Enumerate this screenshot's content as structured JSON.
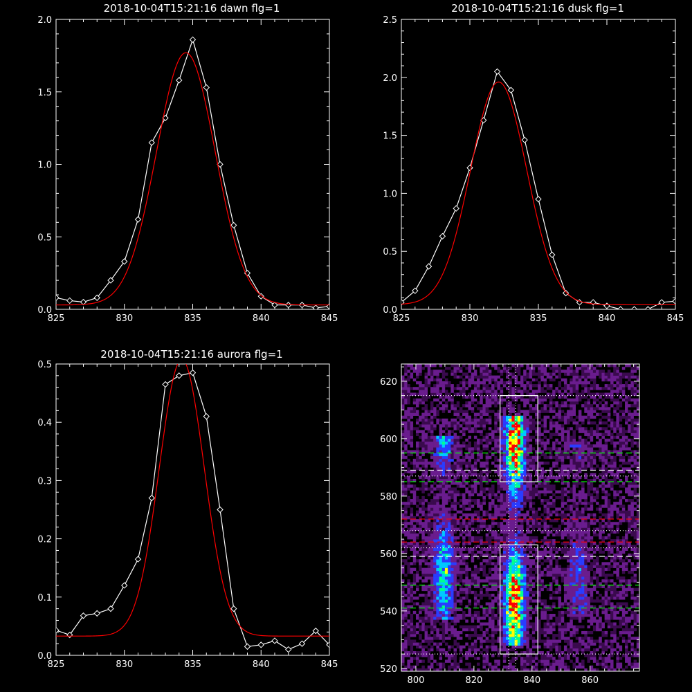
{
  "chart_data": [
    {
      "type": "line",
      "title": "2018-10-04T15:21:16 dawn flg=1",
      "xlim": [
        825,
        845
      ],
      "ylim": [
        0,
        2.0
      ],
      "xticks": [
        "825",
        "830",
        "835",
        "840",
        "845"
      ],
      "yticks": [
        "0.0",
        "0.5",
        "1.0",
        "1.5",
        "2.0"
      ],
      "xtick_values": [
        825,
        830,
        835,
        840,
        845
      ],
      "ytick_values": [
        0,
        0.5,
        1.0,
        1.5,
        2.0
      ],
      "series": [
        {
          "color": "#ffffff",
          "marker": "diamond",
          "x": [
            825,
            826,
            827,
            828,
            829,
            830,
            831,
            832,
            833,
            834,
            835,
            836,
            837,
            838,
            839,
            840,
            841,
            842,
            843,
            844,
            845
          ],
          "y": [
            0.08,
            0.06,
            0.05,
            0.08,
            0.2,
            0.33,
            0.62,
            1.15,
            1.32,
            1.58,
            1.86,
            1.53,
            1.0,
            0.58,
            0.25,
            0.09,
            0.03,
            0.03,
            0.03,
            0.01,
            0.02
          ]
        },
        {
          "color": "#ff0000",
          "marker": "none",
          "gauss": {
            "amp": 1.74,
            "center": 834.5,
            "sigma": 2.15,
            "base": 0.03
          }
        }
      ]
    },
    {
      "type": "line",
      "title": "2018-10-04T15:21:16 dusk flg=1",
      "xlim": [
        825,
        845
      ],
      "ylim": [
        0,
        2.5
      ],
      "xticks": [
        "825",
        "830",
        "835",
        "840",
        "845"
      ],
      "yticks": [
        "0.0",
        "0.5",
        "1.0",
        "1.5",
        "2.0",
        "2.5"
      ],
      "xtick_values": [
        825,
        830,
        835,
        840,
        845
      ],
      "ytick_values": [
        0,
        0.5,
        1.0,
        1.5,
        2.0,
        2.5
      ],
      "series": [
        {
          "color": "#ffffff",
          "marker": "diamond",
          "x": [
            825,
            826,
            827,
            828,
            829,
            830,
            831,
            832,
            833,
            834,
            835,
            836,
            837,
            838,
            839,
            840,
            841,
            842,
            843,
            844,
            845
          ],
          "y": [
            0.06,
            0.16,
            0.37,
            0.63,
            0.87,
            1.22,
            1.63,
            2.05,
            1.89,
            1.46,
            0.95,
            0.47,
            0.14,
            0.06,
            0.06,
            0.03,
            0.0,
            0.0,
            0.0,
            0.06,
            0.07
          ]
        },
        {
          "color": "#ff0000",
          "marker": "none",
          "gauss": {
            "amp": 1.92,
            "center": 832.1,
            "sigma": 2.05,
            "base": 0.04
          }
        }
      ]
    },
    {
      "type": "line",
      "title": "2018-10-04T15:21:16 aurora flg=1",
      "xlim": [
        825,
        845
      ],
      "ylim": [
        0,
        0.5
      ],
      "xticks": [
        "825",
        "830",
        "835",
        "840",
        "845"
      ],
      "yticks": [
        "0.0",
        "0.1",
        "0.2",
        "0.3",
        "0.4",
        "0.5"
      ],
      "xtick_values": [
        825,
        830,
        835,
        840,
        845
      ],
      "ytick_values": [
        0,
        0.1,
        0.2,
        0.3,
        0.4,
        0.5
      ],
      "series": [
        {
          "color": "#ffffff",
          "marker": "diamond",
          "x": [
            825,
            826,
            827,
            828,
            829,
            830,
            831,
            832,
            833,
            834,
            835,
            836,
            837,
            838,
            839,
            840,
            841,
            842,
            843,
            844,
            845
          ],
          "y": [
            0.043,
            0.035,
            0.068,
            0.072,
            0.08,
            0.12,
            0.165,
            0.27,
            0.465,
            0.48,
            0.485,
            0.41,
            0.25,
            0.08,
            0.015,
            0.018,
            0.025,
            0.01,
            0.02,
            0.042,
            0.018
          ]
        },
        {
          "color": "#ff0000",
          "marker": "none",
          "gauss": {
            "amp": 0.475,
            "center": 834.2,
            "sigma": 1.65,
            "base": 0.033
          }
        }
      ]
    },
    {
      "type": "heatmap",
      "xlim": [
        795,
        877
      ],
      "ylim": [
        519,
        626
      ],
      "xticks": [
        "800",
        "820",
        "840",
        "860"
      ],
      "yticks": [
        "520",
        "540",
        "560",
        "580",
        "600",
        "620"
      ],
      "xtick_values": [
        800,
        820,
        840,
        860
      ],
      "ytick_values": [
        520,
        540,
        560,
        580,
        600,
        620
      ],
      "colormap": [
        "#000000",
        "#3a0a4e",
        "#6a1c8e",
        "#2a3cff",
        "#00c8ff",
        "#00ff90",
        "#ffff00",
        "#ff0000"
      ],
      "bands": [
        {
          "x": 809.5,
          "y_from": 537,
          "y_to": 600,
          "strength": 0.55
        },
        {
          "x": 834,
          "y_from": 528,
          "y_to": 607,
          "strength": 1.0
        },
        {
          "x": 856,
          "y_from": 538,
          "y_to": 598,
          "strength": 0.25
        }
      ],
      "boxes": [
        {
          "x0": 829,
          "x1": 842,
          "y0": 585,
          "y1": 615,
          "color": "#ffffff"
        },
        {
          "x0": 829,
          "x1": 842,
          "y0": 525,
          "y1": 563,
          "color": "#ffffff"
        }
      ],
      "vlines": [
        {
          "x": 832,
          "color": "#ffffff",
          "style": "dotted"
        },
        {
          "x": 834.4,
          "color": "#ffffff",
          "style": "dotted"
        }
      ],
      "hlines": [
        {
          "y": 615,
          "color": "#ffffff",
          "style": "dotted"
        },
        {
          "y": 595,
          "color": "#00ff00",
          "style": "dashed"
        },
        {
          "y": 589,
          "color": "#ffffff",
          "style": "dashed"
        },
        {
          "y": 587,
          "color": "#ffffff",
          "style": "dotted"
        },
        {
          "y": 585,
          "color": "#00ff00",
          "style": "dashed"
        },
        {
          "y": 572,
          "color": "#ff0000",
          "style": "dashed"
        },
        {
          "y": 568,
          "color": "#ffffff",
          "style": "dotted"
        },
        {
          "y": 564,
          "color": "#ff0000",
          "style": "dashed"
        },
        {
          "y": 562,
          "color": "#ffffff",
          "style": "dotted"
        },
        {
          "y": 559,
          "color": "#ffffff",
          "style": "dashed"
        },
        {
          "y": 549,
          "color": "#00ff00",
          "style": "dashed"
        },
        {
          "y": 541,
          "color": "#00ff00",
          "style": "dashed"
        },
        {
          "y": 525,
          "color": "#ffffff",
          "style": "dotted"
        }
      ]
    }
  ]
}
